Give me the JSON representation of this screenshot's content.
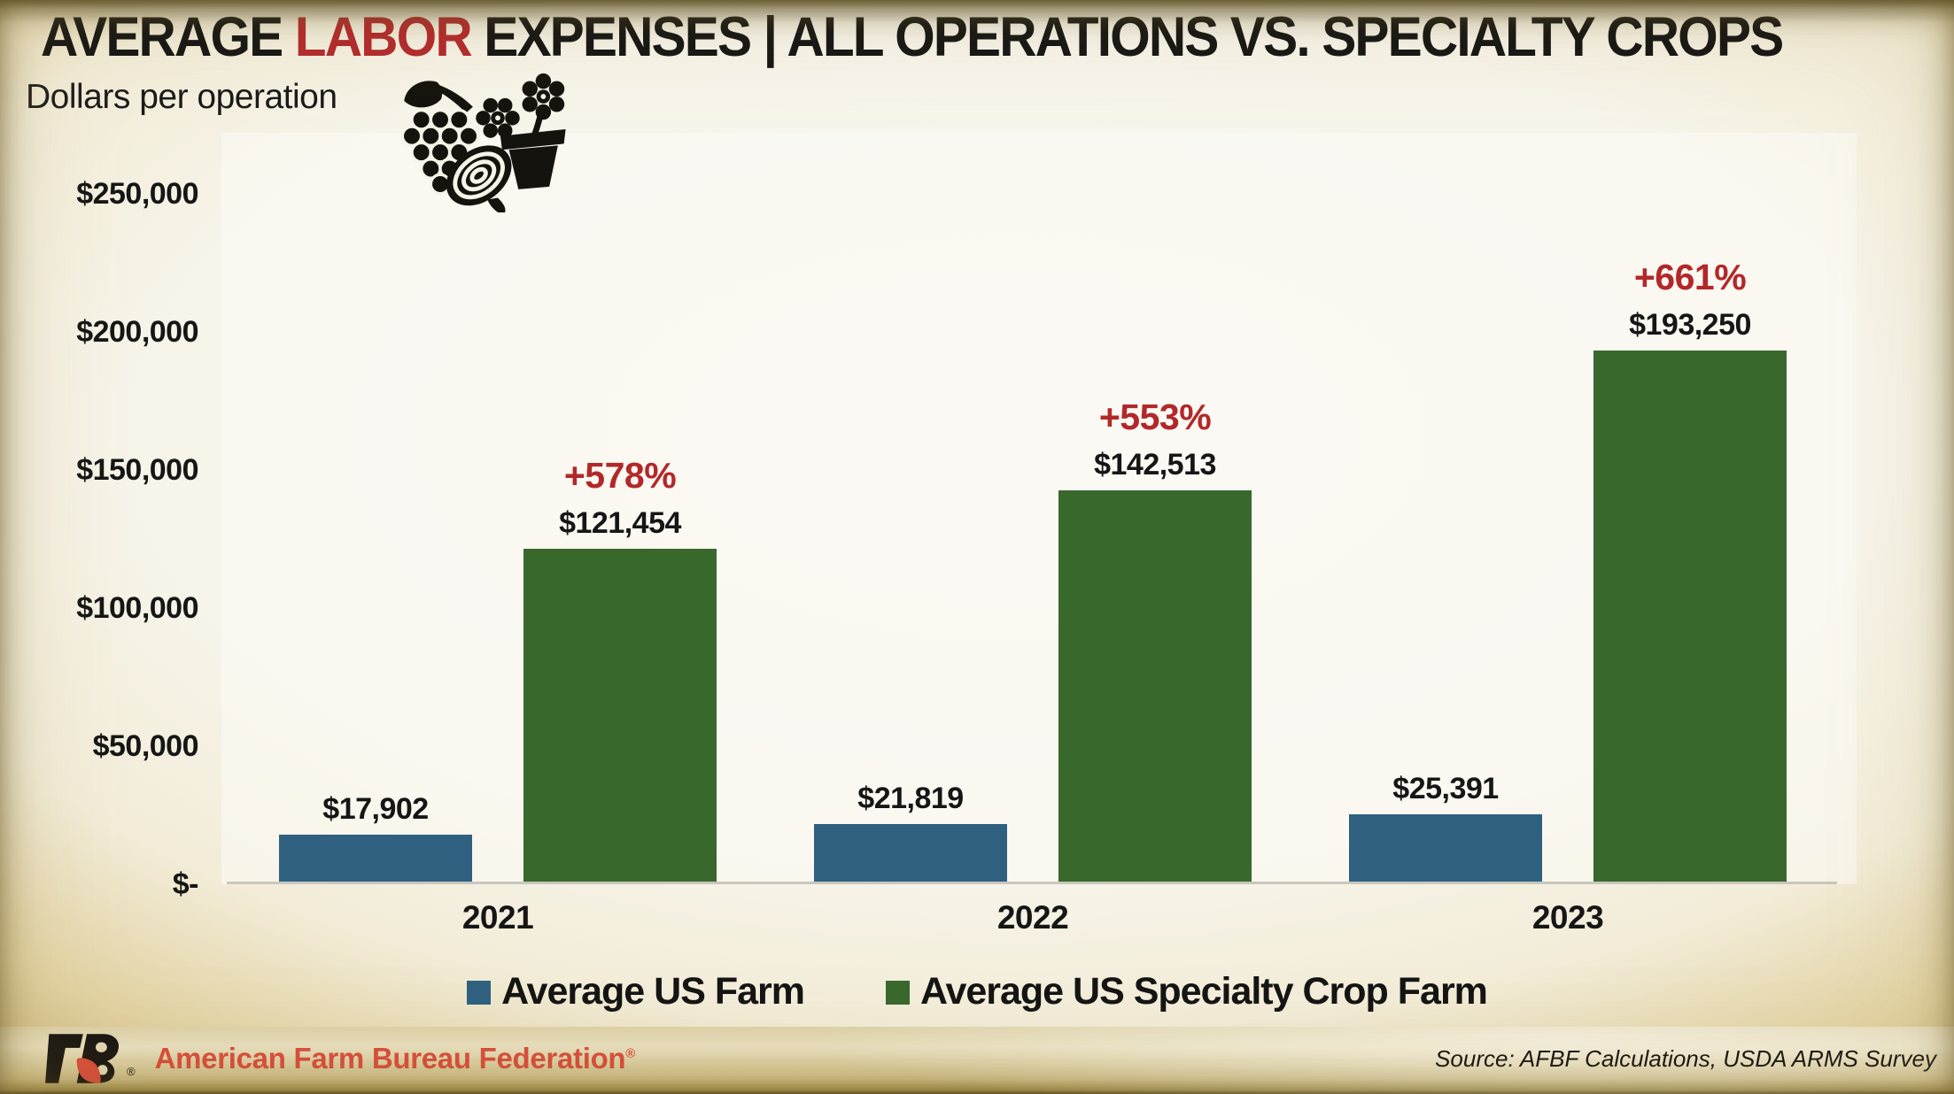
{
  "title": {
    "pre": "AVERAGE ",
    "highlight": "LABOR",
    "post": " EXPENSES | ALL OPERATIONS VS. SPECIALTY CROPS"
  },
  "chart_data": {
    "type": "bar",
    "title": "AVERAGE LABOR EXPENSES | ALL OPERATIONS VS. SPECIALTY CROPS",
    "subtitle": "Dollars per operation",
    "categories": [
      "2021",
      "2022",
      "2023"
    ],
    "series": [
      {
        "name": "Average US Farm",
        "color": "#2F6080",
        "values": [
          17902,
          21819,
          25391
        ],
        "value_labels": [
          "$17,902",
          "$21,819",
          "$25,391"
        ]
      },
      {
        "name": "Average US Specialty Crop Farm",
        "color": "#38682C",
        "values": [
          121454,
          142513,
          193250
        ],
        "value_labels": [
          "$121,454",
          "$142,513",
          "$193,250"
        ],
        "pct_labels": [
          "+578%",
          "+553%",
          "+661%"
        ]
      }
    ],
    "ylim": [
      0,
      250000
    ],
    "yticks": [
      {
        "label": "$250,000",
        "value": 250000
      },
      {
        "label": "$200,000",
        "value": 200000
      },
      {
        "label": "$150,000",
        "value": 150000
      },
      {
        "label": "$100,000",
        "value": 100000
      },
      {
        "label": "$50,000",
        "value": 50000
      },
      {
        "label": "$-",
        "value": 0
      }
    ],
    "grid": false,
    "legend_position": "bottom"
  },
  "icons": {
    "header_icon": "specialty-crops-icon (grapes, flowers, potted plant, onion)"
  },
  "colors": {
    "highlight_red": "#B3282C",
    "pct_red": "#B2282A",
    "bar_blue": "#2F6080",
    "bar_green": "#38682C",
    "brand_red": "#D84B39",
    "axis_line": "#C9C6BE"
  },
  "footer": {
    "brand": "American Farm Bureau Federation",
    "brand_reg": "®",
    "source": "Source: AFBF Calculations, USDA ARMS Survey"
  }
}
